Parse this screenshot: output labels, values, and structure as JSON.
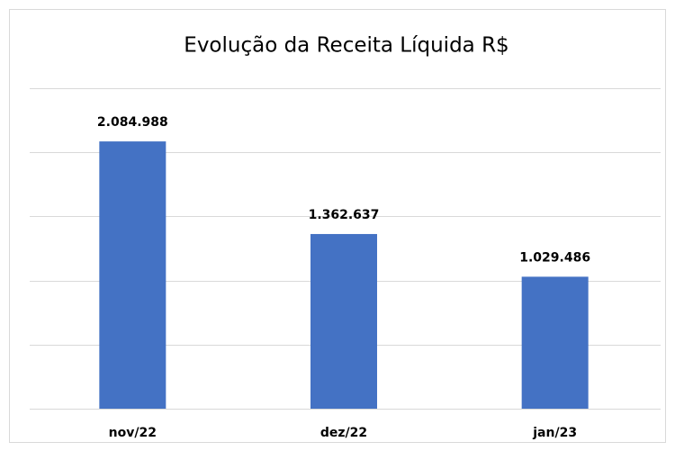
{
  "chart_data": {
    "type": "bar",
    "title": "Evolução da Receita Líquida R$",
    "categories": [
      "nov/22",
      "dez/22",
      "jan/23"
    ],
    "values": [
      2084988,
      1362637,
      1029486
    ],
    "value_labels": [
      "2.084.988",
      "1.362.637",
      "1.029.486"
    ],
    "color": "#4472c4",
    "ylim": [
      0,
      2500000
    ],
    "yticks": [
      0,
      500000,
      1000000,
      1500000,
      2000000,
      2500000
    ],
    "grid": true
  }
}
